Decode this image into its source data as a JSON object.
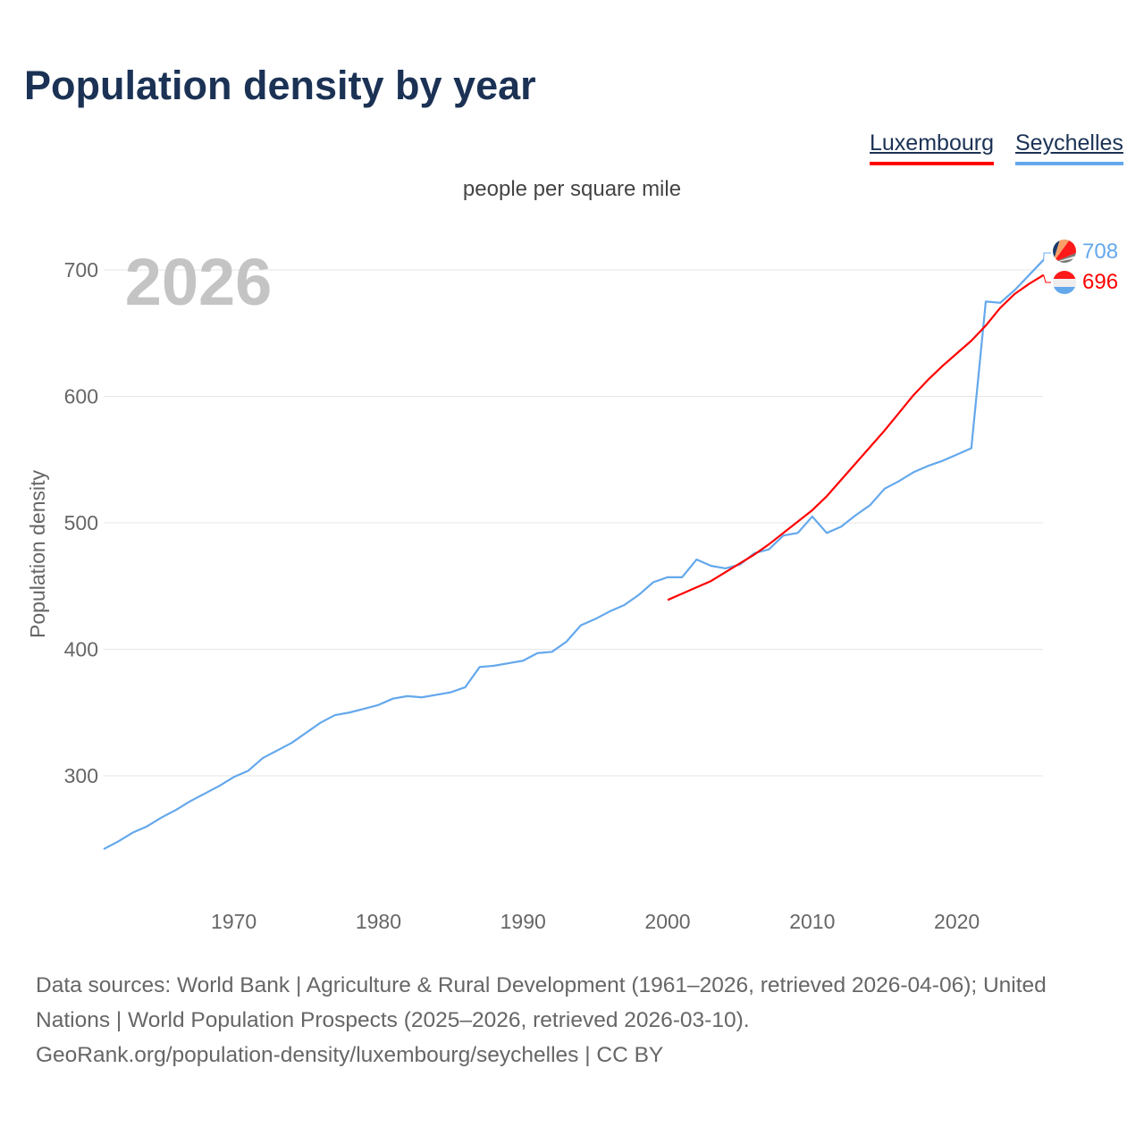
{
  "title": "Population density by year",
  "subtitle": "people per square mile",
  "year_watermark": "2026",
  "legend": [
    {
      "label": "Luxembourg",
      "color": "#ff0000"
    },
    {
      "label": "Seychelles",
      "color": "#64a8ec"
    }
  ],
  "footer": {
    "line1": "Data sources: World Bank | Agriculture & Rural Development (1961–2026, retrieved 2026-04-06); United Nations | World Population Prospects (2025–2026, retrieved 2026-03-10).",
    "line2": "GeoRank.org/population-density/luxembourg/seychelles | CC BY"
  },
  "chart_data": {
    "type": "line",
    "title": "Population density by year",
    "ylabel": "Population density",
    "xlabel": "",
    "units": "people per square mile",
    "xlim": [
      1961,
      2026
    ],
    "ylim": [
      230,
      730
    ],
    "grid": true,
    "yticks": [
      300,
      400,
      500,
      600,
      700
    ],
    "xticks": [
      1970,
      1980,
      1990,
      2000,
      2010,
      2020
    ],
    "legend_position": "top-right",
    "series": [
      {
        "name": "Seychelles",
        "color": "#64a8ec",
        "end_label": "708",
        "x": [
          1961,
          1962,
          1963,
          1964,
          1965,
          1966,
          1967,
          1968,
          1969,
          1970,
          1971,
          1972,
          1973,
          1974,
          1975,
          1976,
          1977,
          1978,
          1979,
          1980,
          1981,
          1982,
          1983,
          1984,
          1985,
          1986,
          1987,
          1988,
          1989,
          1990,
          1991,
          1992,
          1993,
          1994,
          1995,
          1996,
          1997,
          1998,
          1999,
          2000,
          2001,
          2002,
          2003,
          2004,
          2005,
          2006,
          2007,
          2008,
          2009,
          2010,
          2011,
          2012,
          2013,
          2014,
          2015,
          2016,
          2017,
          2018,
          2019,
          2020,
          2021,
          2022,
          2023,
          2024,
          2025,
          2026
        ],
        "values": [
          242,
          248,
          255,
          260,
          267,
          273,
          280,
          286,
          292,
          299,
          304,
          314,
          320,
          326,
          334,
          342,
          348,
          350,
          353,
          356,
          361,
          363,
          362,
          364,
          366,
          370,
          386,
          387,
          389,
          391,
          397,
          398,
          406,
          419,
          424,
          430,
          435,
          443,
          453,
          457,
          457,
          471,
          466,
          464,
          467,
          476,
          479,
          490,
          492,
          505,
          492,
          497,
          506,
          514,
          527,
          533,
          540,
          545,
          549,
          554,
          559,
          675,
          674,
          684,
          696,
          708
        ]
      },
      {
        "name": "Luxembourg",
        "color": "#ff0000",
        "end_label": "696",
        "x": [
          2000,
          2001,
          2002,
          2003,
          2004,
          2005,
          2006,
          2007,
          2008,
          2009,
          2010,
          2011,
          2012,
          2013,
          2014,
          2015,
          2016,
          2017,
          2018,
          2019,
          2020,
          2021,
          2022,
          2023,
          2024,
          2025,
          2026
        ],
        "values": [
          439,
          444,
          449,
          454,
          461,
          468,
          475,
          483,
          492,
          501,
          510,
          521,
          534,
          547,
          560,
          573,
          587,
          601,
          613,
          624,
          634,
          644,
          656,
          670,
          681,
          689,
          696
        ]
      }
    ]
  }
}
